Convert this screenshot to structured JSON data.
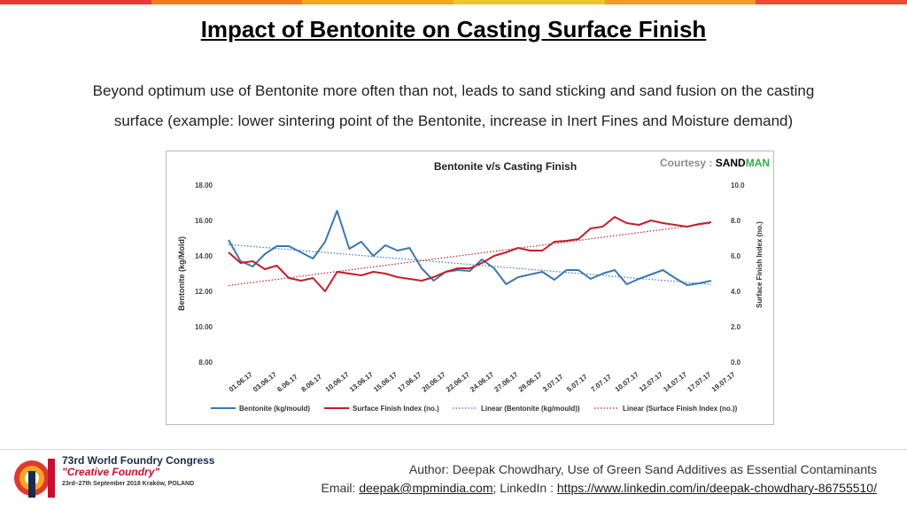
{
  "slide": {
    "title": "Impact of Bentonite on Casting Surface Finish",
    "body": "Beyond optimum use of Bentonite more often than not, leads to sand sticking and sand fusion on the casting surface (example: lower sintering point of the Bentonite, increase in Inert Fines and Moisture demand)",
    "courtesy_label": "Courtesy :",
    "courtesy_brand_a": "SAND",
    "courtesy_brand_b": "MAN",
    "top_bar_colors": [
      "#e63c2f",
      "#f07a1e",
      "#f5a623",
      "#f0c330",
      "#f29a2e",
      "#e8502f"
    ]
  },
  "footer": {
    "congress_title": "73rd World Foundry Congress",
    "congress_subtitle": "\"Creative Foundry\"",
    "congress_dates": "23rd–27th September 2018 Kraków, POLAND",
    "author_line": "Author: Deepak Chowdhary, Use of Green Sand Additives as Essential Contaminants",
    "email_label": "Email:",
    "email": "deepak@mpmindia.com",
    "linkedin_label": "; LinkedIn :",
    "linkedin": "https://www.linkedin.com/in/deepak-chowdhary-86755510/"
  },
  "chart_data": {
    "type": "line",
    "title": "Bentonite v/s Casting Finish",
    "ylabel": "Bentonite (kg/Mold)",
    "y2label": "Surface Finish Index (no.)",
    "ylim": [
      8,
      18
    ],
    "y2lim": [
      0,
      10
    ],
    "yticks": [
      "18.00",
      "16.00",
      "14.00",
      "12.00",
      "10.00",
      "8.00"
    ],
    "y2ticks": [
      "10.0",
      "8.0",
      "6.0",
      "4.0",
      "2.0",
      "0.0"
    ],
    "x_tick_labels": [
      "01.06.17",
      "03.06.17",
      "6.06.17",
      "8.06.17",
      "10.06.17",
      "13.06.17",
      "15.06.17",
      "17.06.17",
      "20.06.17",
      "22.06.17",
      "24.06.17",
      "27.06.17",
      "29.06.17",
      "3.07.17",
      "5.07.17",
      "7.07.17",
      "10.07.17",
      "12.07.17",
      "14.07.17",
      "17.07.17",
      "19.07.17"
    ],
    "n_points": 41,
    "legend_position": "bottom",
    "grid": false,
    "series": [
      {
        "name": "Bentonite (kg/mould)",
        "axis": "left",
        "color": "#3a78b0",
        "values": [
          14.9,
          13.7,
          13.4,
          14.1,
          14.55,
          14.55,
          14.2,
          13.85,
          14.8,
          16.55,
          14.4,
          14.8,
          14.0,
          14.6,
          14.3,
          14.45,
          13.3,
          12.6,
          13.1,
          13.2,
          13.15,
          13.8,
          13.3,
          12.4,
          12.8,
          12.95,
          13.1,
          12.65,
          13.2,
          13.2,
          12.7,
          13.0,
          13.2,
          12.4,
          12.7,
          12.95,
          13.2,
          12.75,
          12.35,
          12.45,
          12.6
        ]
      },
      {
        "name": "Surface Finish Index (no.)",
        "axis": "right",
        "color": "#c0202a",
        "values": [
          6.2,
          5.6,
          5.7,
          5.25,
          5.45,
          4.75,
          4.6,
          4.75,
          4.0,
          5.1,
          5.0,
          4.9,
          5.1,
          5.0,
          4.8,
          4.7,
          4.6,
          4.8,
          5.1,
          5.3,
          5.3,
          5.6,
          6.0,
          6.2,
          6.45,
          6.3,
          6.3,
          6.8,
          6.85,
          6.95,
          7.55,
          7.65,
          8.2,
          7.85,
          7.75,
          8.0,
          7.85,
          7.75,
          7.65,
          7.8,
          7.9
        ]
      },
      {
        "name": "Linear (Bentonite (kg/mould))",
        "axis": "left",
        "color": "#3a78b0",
        "dashed": true,
        "trend_of": 0
      },
      {
        "name": "Linear (Surface Finish Index (no.))",
        "axis": "right",
        "color": "#c0202a",
        "dashed": true,
        "trend_of": 1
      }
    ]
  }
}
